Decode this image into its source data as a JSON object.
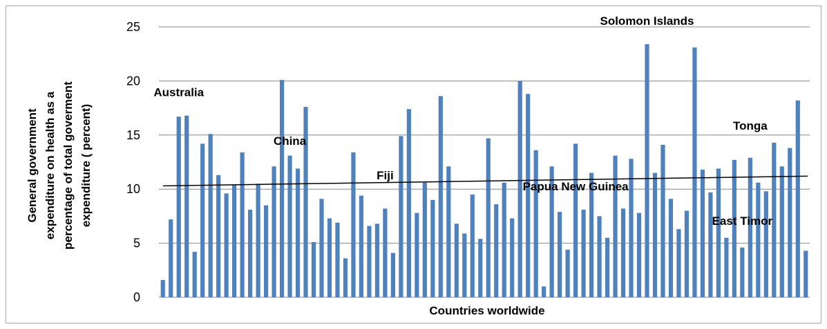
{
  "chart_data": {
    "type": "bar",
    "xlabel": "Countries worldwide",
    "ylabel_lines": [
      "General government",
      "expenditure on health as a",
      "percentage of total goverment",
      "expenditure ( percent)"
    ],
    "ylim": [
      0,
      25
    ],
    "yticks": [
      0,
      5,
      10,
      15,
      20,
      25
    ],
    "grid": "horizontal",
    "bar_color": "#4f81bd",
    "trendline_color": "#000000",
    "values": [
      1.6,
      7.2,
      16.7,
      16.8,
      4.2,
      14.2,
      15.1,
      11.3,
      9.6,
      10.4,
      13.4,
      8.1,
      10.5,
      8.5,
      12.1,
      20.1,
      13.1,
      11.9,
      17.6,
      5.1,
      9.1,
      7.3,
      6.9,
      3.6,
      13.4,
      9.4,
      6.6,
      6.8,
      8.2,
      4.1,
      14.9,
      17.4,
      7.8,
      10.6,
      9.0,
      18.6,
      12.1,
      6.8,
      5.9,
      9.5,
      5.4,
      14.7,
      8.6,
      10.6,
      7.3,
      20.0,
      18.8,
      13.6,
      1.0,
      12.1,
      7.9,
      4.4,
      14.2,
      8.1,
      11.5,
      7.5,
      5.5,
      13.1,
      8.2,
      12.8,
      7.8,
      23.4,
      11.5,
      14.1,
      9.1,
      6.3,
      8.0,
      23.1,
      11.8,
      9.7,
      11.9,
      5.5,
      12.7,
      4.6,
      12.9,
      10.6,
      9.8,
      14.3,
      12.1,
      13.8,
      18.2,
      4.3
    ],
    "trendline": {
      "start": 10.3,
      "end": 11.2
    },
    "annotations": [
      {
        "text": "Australia",
        "index": 2,
        "y": 18.6
      },
      {
        "text": "China",
        "index": 16,
        "y": 14.1
      },
      {
        "text": "Fiji",
        "index": 28,
        "y": 10.9
      },
      {
        "text": "Papua New Guinea",
        "index": 52,
        "y": 9.9
      },
      {
        "text": "Solomon Islands",
        "index": 61,
        "y": 25.2
      },
      {
        "text": "Tonga",
        "index": 74,
        "y": 15.5
      },
      {
        "text": "East Timor",
        "index": 73,
        "y": 6.7
      }
    ]
  }
}
